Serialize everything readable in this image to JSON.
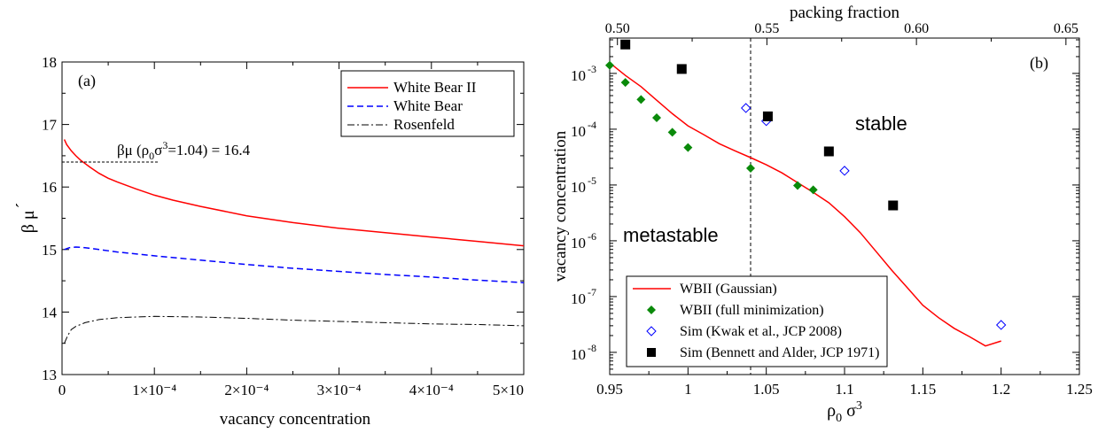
{
  "chart_data": [
    {
      "type": "line",
      "panel_label": "(a)",
      "xlabel": "vacancy concentration",
      "ylabel_main": "β μ",
      "ylabel_prime": "´",
      "xlim": [
        0,
        0.0005
      ],
      "ylim": [
        13,
        18
      ],
      "x_ticks": [
        {
          "value": 0,
          "label": "0"
        },
        {
          "value": 0.0001,
          "label": "1×10⁻⁴"
        },
        {
          "value": 0.0002,
          "label": "2×10⁻⁴"
        },
        {
          "value": 0.0003,
          "label": "3×10⁻⁴"
        },
        {
          "value": 0.0004,
          "label": "4×10⁻⁴"
        },
        {
          "value": 0.0005,
          "label": "5×10"
        }
      ],
      "y_ticks": [
        {
          "value": 13,
          "label": "13"
        },
        {
          "value": 14,
          "label": "14"
        },
        {
          "value": 15,
          "label": "15"
        },
        {
          "value": 16,
          "label": "16"
        },
        {
          "value": 17,
          "label": "17"
        },
        {
          "value": 18,
          "label": "18"
        }
      ],
      "legend_position": "top-right",
      "annotation": {
        "text_main": "βμ (ρ",
        "text_sub0": "0",
        "text_mid": "σ",
        "text_sup3": "3",
        "text_end": "=1.04) = 16.4",
        "y": 16.4,
        "x_end": 0.000105
      },
      "series": [
        {
          "name": "White Bear II",
          "color": "#ff0000",
          "dash": "solid",
          "points": [
            [
              2.5e-06,
              16.76
            ],
            [
              5e-06,
              16.68
            ],
            [
              1e-05,
              16.58
            ],
            [
              1.5e-05,
              16.5
            ],
            [
              2e-05,
              16.43
            ],
            [
              3e-05,
              16.32
            ],
            [
              4e-05,
              16.22
            ],
            [
              5e-05,
              16.14
            ],
            [
              6e-05,
              16.08
            ],
            [
              8e-05,
              15.97
            ],
            [
              0.0001,
              15.87
            ],
            [
              0.00012,
              15.79
            ],
            [
              0.00015,
              15.69
            ],
            [
              0.0002,
              15.54
            ],
            [
              0.00025,
              15.43
            ],
            [
              0.0003,
              15.34
            ],
            [
              0.00035,
              15.27
            ],
            [
              0.0004,
              15.2
            ],
            [
              0.00045,
              15.13
            ],
            [
              0.0005,
              15.06
            ]
          ]
        },
        {
          "name": "White Bear",
          "color": "#0000ff",
          "dash": "dashed",
          "points": [
            [
              2.5e-06,
              15.0
            ],
            [
              8e-06,
              15.03
            ],
            [
              1.5e-05,
              15.04
            ],
            [
              2.5e-05,
              15.03
            ],
            [
              4e-05,
              15.0
            ],
            [
              6e-05,
              14.96
            ],
            [
              0.0001,
              14.9
            ],
            [
              0.00015,
              14.83
            ],
            [
              0.0002,
              14.76
            ],
            [
              0.00025,
              14.7
            ],
            [
              0.0003,
              14.65
            ],
            [
              0.00035,
              14.6
            ],
            [
              0.0004,
              14.56
            ],
            [
              0.00045,
              14.51
            ],
            [
              0.0005,
              14.47
            ]
          ]
        },
        {
          "name": "Rosenfeld",
          "color": "#000000",
          "dash": "dashdot",
          "points": [
            [
              2.5e-06,
              13.5
            ],
            [
              6e-06,
              13.62
            ],
            [
              1e-05,
              13.72
            ],
            [
              1.5e-05,
              13.77
            ],
            [
              2.5e-05,
              13.83
            ],
            [
              4e-05,
              13.88
            ],
            [
              6e-05,
              13.91
            ],
            [
              8e-05,
              13.92
            ],
            [
              0.0001,
              13.93
            ],
            [
              0.00015,
              13.92
            ],
            [
              0.0002,
              13.9
            ],
            [
              0.00025,
              13.87
            ],
            [
              0.0003,
              13.85
            ],
            [
              0.00035,
              13.83
            ],
            [
              0.0004,
              13.81
            ],
            [
              0.00045,
              13.8
            ],
            [
              0.0005,
              13.78
            ]
          ]
        }
      ]
    },
    {
      "type": "scatter",
      "panel_label": "(b)",
      "xlabel_main": "ρ",
      "xlabel_sub": "0",
      "xlabel_tail": " σ",
      "xlabel_sup": "3",
      "ylabel": "vacancy concentration",
      "top_xlabel": "packing fraction",
      "xlim": [
        0.95,
        1.25
      ],
      "ylog": true,
      "ylim": [
        4e-09,
        0.0043
      ],
      "x_ticks": [
        "0.95",
        "1",
        "1.05",
        "1.1",
        "1.15",
        "1.2",
        "1.25"
      ],
      "x_tick_values": [
        0.95,
        1.0,
        1.05,
        1.1,
        1.15,
        1.2,
        1.25
      ],
      "top_x_ticks": [
        "0.50",
        "0.55",
        "0.60",
        "0.65"
      ],
      "top_x_tick_values": [
        0.95493,
        1.0504,
        1.14592,
        1.24141
      ],
      "y_ticks": [
        {
          "value": 1e-08,
          "base": "10",
          "exp": "-8"
        },
        {
          "value": 1e-07,
          "base": "10",
          "exp": "-7"
        },
        {
          "value": 1e-06,
          "base": "10",
          "exp": "-6"
        },
        {
          "value": 1e-05,
          "base": "10",
          "exp": "-5"
        },
        {
          "value": 0.0001,
          "base": "10",
          "exp": "-4"
        },
        {
          "value": 0.001,
          "base": "10",
          "exp": "-3"
        }
      ],
      "vline_x": 1.04,
      "region_labels": {
        "stable": "stable",
        "metastable": "metastable"
      },
      "legend_position": "bottom-left",
      "series": [
        {
          "name": "WBII (Gaussian)",
          "kind": "line",
          "color": "#ff0000",
          "points": [
            [
              0.95,
              0.00155
            ],
            [
              0.96,
              0.00092
            ],
            [
              0.97,
              0.00058
            ],
            [
              0.98,
              0.00033
            ],
            [
              0.99,
              0.00019
            ],
            [
              1.0,
              0.000115
            ],
            [
              1.01,
              8e-05
            ],
            [
              1.02,
              5.5e-05
            ],
            [
              1.03,
              4.1e-05
            ],
            [
              1.04,
              3.1e-05
            ],
            [
              1.05,
              2.3e-05
            ],
            [
              1.06,
              1.65e-05
            ],
            [
              1.07,
              1.1e-05
            ],
            [
              1.08,
              7.4e-06
            ],
            [
              1.09,
              4.8e-06
            ],
            [
              1.1,
              2.7e-06
            ],
            [
              1.11,
              1.4e-06
            ],
            [
              1.12,
              6.5e-07
            ],
            [
              1.13,
              3e-07
            ],
            [
              1.14,
              1.45e-07
            ],
            [
              1.15,
              7e-08
            ],
            [
              1.16,
              4.2e-08
            ],
            [
              1.17,
              2.7e-08
            ],
            [
              1.18,
              1.9e-08
            ],
            [
              1.19,
              1.3e-08
            ],
            [
              1.2,
              1.6e-08
            ]
          ]
        },
        {
          "name": "WBII (full minimization)",
          "kind": "diamond",
          "color": "#0a8a0a",
          "points": [
            [
              0.95,
              0.0014
            ],
            [
              0.96,
              0.00069
            ],
            [
              0.97,
              0.00034
            ],
            [
              0.98,
              0.00016
            ],
            [
              0.99,
              8.8e-05
            ],
            [
              1.0,
              4.7e-05
            ],
            [
              1.04,
              2e-05
            ],
            [
              1.07,
              9.8e-06
            ],
            [
              1.08,
              8.2e-06
            ]
          ]
        },
        {
          "name": "Sim (Kwak et al., JCP 2008)",
          "kind": "open-diamond",
          "color": "#0000ff",
          "points": [
            [
              1.037,
              0.00024
            ],
            [
              1.05,
              0.00014
            ],
            [
              1.1,
              1.8e-05
            ],
            [
              1.2,
              3.1e-08
            ]
          ]
        },
        {
          "name": "Sim (Bennett and Alder, JCP 1971)",
          "kind": "square",
          "color": "#000000",
          "points": [
            [
              0.96,
              0.0033
            ],
            [
              0.996,
              0.0012
            ],
            [
              1.051,
              0.00017
            ],
            [
              1.09,
              4e-05
            ],
            [
              1.131,
              4.3e-06
            ]
          ]
        }
      ]
    }
  ]
}
